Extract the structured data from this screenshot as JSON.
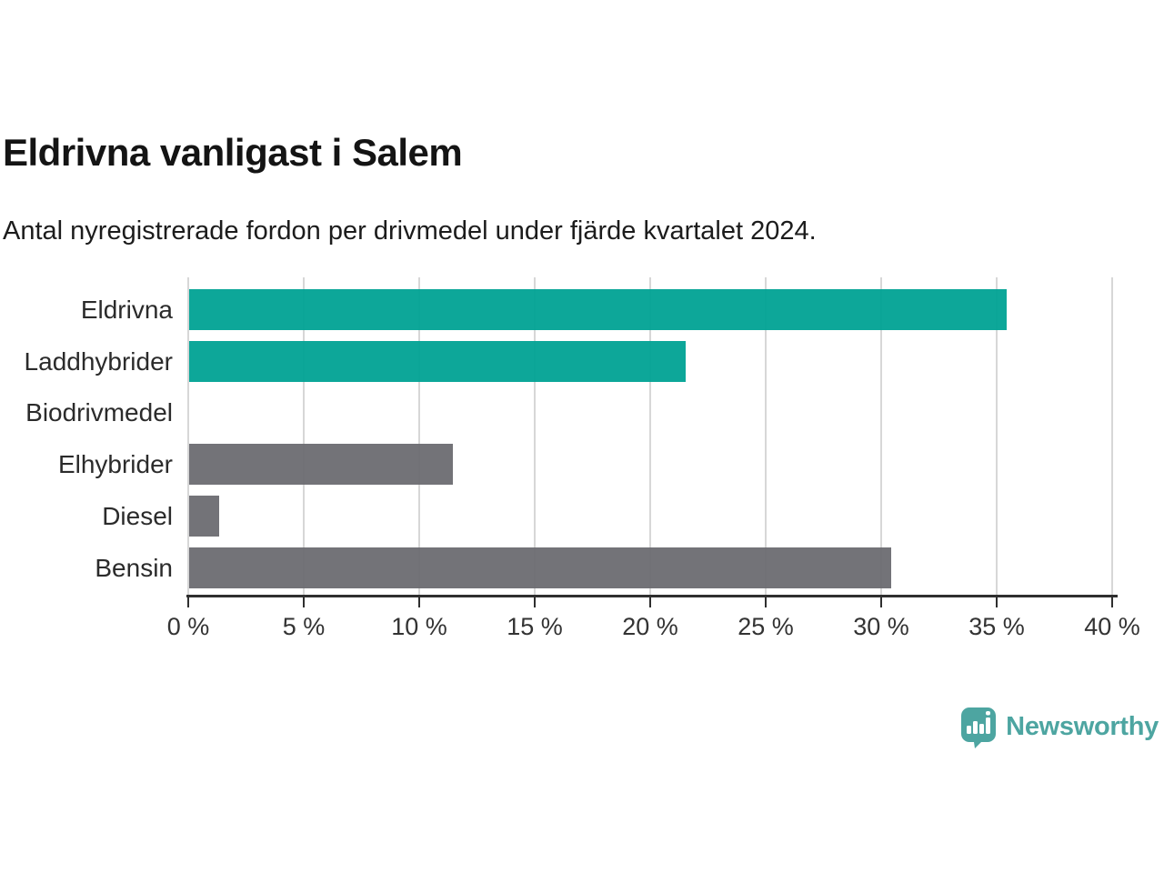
{
  "header": {
    "title": "Eldrivna vanligast i Salem",
    "subtitle": "Antal nyregistrerade fordon per drivmedel under fjärde kvartalet 2024."
  },
  "chart_data": {
    "type": "bar",
    "orientation": "horizontal",
    "title": "Eldrivna vanligast i Salem",
    "subtitle": "Antal nyregistrerade fordon per drivmedel under fjärde kvartalet 2024.",
    "categories": [
      "Eldrivna",
      "Laddhybrider",
      "Biodrivmedel",
      "Elhybrider",
      "Diesel",
      "Bensin"
    ],
    "values": [
      35.4,
      21.5,
      0,
      11.4,
      1.3,
      30.4
    ],
    "unit": "%",
    "bar_colors": [
      "#00a294",
      "#00a294",
      "#6c6c71",
      "#6c6c71",
      "#6c6c71",
      "#6c6c71"
    ],
    "xlabel": "",
    "ylabel": "",
    "xlim": [
      0,
      40
    ],
    "x_ticks": [
      0,
      5,
      10,
      15,
      20,
      25,
      30,
      35,
      40
    ],
    "x_tick_labels": [
      "0 %",
      "5 %",
      "10 %",
      "15 %",
      "20 %",
      "25 %",
      "30 %",
      "35 %",
      "40 %"
    ],
    "grid": "vertical-on",
    "legend": "none"
  },
  "branding": {
    "wordmark": "Newsworthy",
    "icon": "newsworthy-speech-bubble-chart-icon",
    "logo_color": "#4da5a1"
  },
  "colors": {
    "accent_teal": "#00a294",
    "neutral_gray": "#6c6c71",
    "gridline": "#d7d7d7",
    "axis": "#2f2f2f",
    "title_text": "#141414",
    "label_text": "#2b2b2b"
  }
}
